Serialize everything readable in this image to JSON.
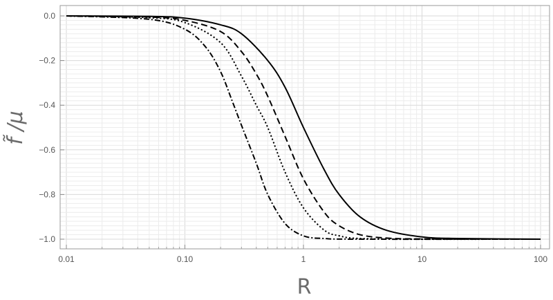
{
  "chart_data": {
    "type": "line",
    "xlabel": "R",
    "ylabel": "f̃ /μ",
    "xscale": "log",
    "xlim": [
      0.01,
      100
    ],
    "ylim": [
      -1.0,
      0.0
    ],
    "grid": true,
    "x_ticks": [
      "0.01",
      "0.10",
      "1",
      "10",
      "100"
    ],
    "y_ticks": [
      "0.0",
      "−0.2",
      "−0.4",
      "−0.6",
      "−0.8",
      "−1.0"
    ],
    "x_tick_values": [
      0.01,
      0.1,
      1,
      10,
      100
    ],
    "y_tick_values": [
      0.0,
      -0.2,
      -0.4,
      -0.6,
      -0.8,
      -1.0
    ],
    "series": [
      {
        "style": "solid",
        "x": [
          0.01,
          0.05,
          0.1,
          0.2,
          0.3,
          0.5,
          0.7,
          1.0,
          1.5,
          2.0,
          3.0,
          5.0,
          10,
          20,
          100
        ],
        "y": [
          0.0,
          -0.002,
          -0.01,
          -0.04,
          -0.08,
          -0.2,
          -0.32,
          -0.5,
          -0.69,
          -0.8,
          -0.9,
          -0.96,
          -0.99,
          -0.997,
          -1.0
        ]
      },
      {
        "style": "dashed",
        "x": [
          0.01,
          0.05,
          0.1,
          0.2,
          0.3,
          0.4,
          0.5,
          0.7,
          1.0,
          1.5,
          2.0,
          3.0,
          5.0,
          10,
          100
        ],
        "y": [
          0.0,
          -0.005,
          -0.02,
          -0.07,
          -0.16,
          -0.26,
          -0.36,
          -0.54,
          -0.73,
          -0.88,
          -0.94,
          -0.98,
          -0.995,
          -0.999,
          -1.0
        ]
      },
      {
        "style": "dotted",
        "x": [
          0.01,
          0.05,
          0.1,
          0.2,
          0.3,
          0.4,
          0.5,
          0.7,
          1.0,
          1.5,
          2.0,
          3.0,
          10,
          100
        ],
        "y": [
          0.0,
          -0.008,
          -0.03,
          -0.12,
          -0.27,
          -0.4,
          -0.5,
          -0.7,
          -0.86,
          -0.96,
          -0.985,
          -0.997,
          -1.0,
          -1.0
        ]
      },
      {
        "style": "dash-dot",
        "x": [
          0.01,
          0.05,
          0.1,
          0.15,
          0.2,
          0.25,
          0.3,
          0.4,
          0.5,
          0.7,
          1.0,
          1.5,
          3.0,
          100
        ],
        "y": [
          0.0,
          -0.015,
          -0.06,
          -0.14,
          -0.25,
          -0.38,
          -0.49,
          -0.66,
          -0.8,
          -0.93,
          -0.985,
          -0.997,
          -1.0,
          -1.0
        ]
      }
    ]
  }
}
